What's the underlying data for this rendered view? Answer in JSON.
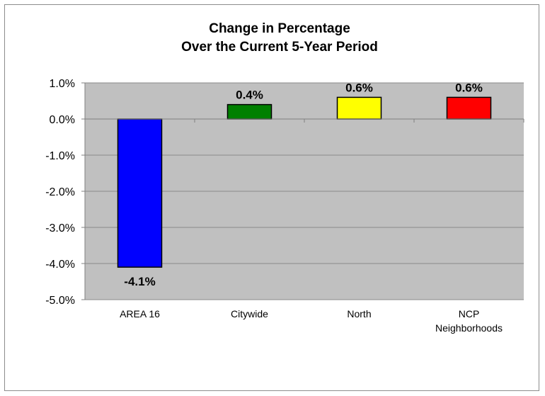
{
  "chart_data": {
    "type": "bar",
    "title": [
      "Change in Percentage",
      "Over the Current 5-Year Period"
    ],
    "categories": [
      [
        "AREA 16"
      ],
      [
        "Citywide"
      ],
      [
        "North"
      ],
      [
        "NCP",
        "Neighborhoods"
      ]
    ],
    "values": [
      -4.1,
      0.4,
      0.6,
      0.6
    ],
    "data_labels": [
      "-4.1%",
      "0.4%",
      "0.6%",
      "0.6%"
    ],
    "colors": [
      "#0000ff",
      "#008000",
      "#ffff00",
      "#ff0000"
    ],
    "ylim": [
      -5.0,
      1.0
    ],
    "yticks": [
      1.0,
      0.0,
      -1.0,
      -2.0,
      -3.0,
      -4.0,
      -5.0
    ],
    "ytick_labels": [
      "1.0%",
      "0.0%",
      "-1.0%",
      "-2.0%",
      "-3.0%",
      "-4.0%",
      "-5.0%"
    ],
    "grid": true,
    "plot_background": "#c0c0c0",
    "xlabel": "",
    "ylabel": ""
  }
}
